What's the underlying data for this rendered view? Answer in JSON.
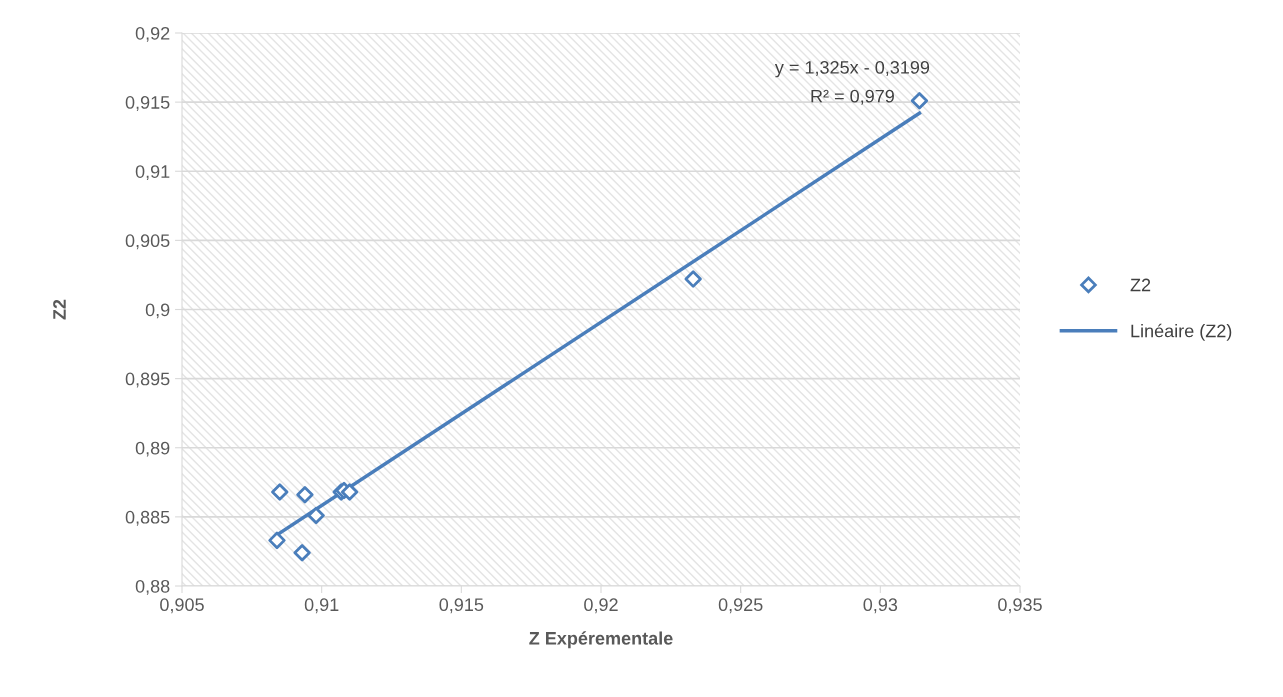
{
  "chart_data": {
    "type": "scatter",
    "xlabel": "Z Expérementale",
    "ylabel": "Z2",
    "series": [
      {
        "name": "Z2",
        "marker": "diamond",
        "color": "#4a7ebb",
        "x": [
          0.9085,
          0.9094,
          0.9098,
          0.9084,
          0.9093,
          0.9107,
          0.9108,
          0.911,
          0.9233,
          0.9314
        ],
        "values": [
          0.8868,
          0.8866,
          0.8851,
          0.8833,
          0.8824,
          0.8868,
          0.8869,
          0.8868,
          0.9022,
          0.9151
        ]
      },
      {
        "name": "Linéaire (Z2)",
        "type": "line",
        "line_style": "solid",
        "color": "#4a7ebb",
        "x": [
          0.9084,
          0.9314
        ],
        "values": [
          0.8837,
          0.9142
        ]
      }
    ],
    "annotations": [
      "y = 1,325x - 0,3199",
      "R² = 0,979"
    ],
    "xlim": [
      0.905,
      0.935
    ],
    "xticks": [
      {
        "value": 0.905,
        "label": "0,905"
      },
      {
        "value": 0.91,
        "label": "0,91"
      },
      {
        "value": 0.915,
        "label": "0,915"
      },
      {
        "value": 0.92,
        "label": "0,92"
      },
      {
        "value": 0.925,
        "label": "0,925"
      },
      {
        "value": 0.93,
        "label": "0,93"
      },
      {
        "value": 0.935,
        "label": "0,935"
      }
    ],
    "ylim": [
      0.88,
      0.92
    ],
    "yticks": [
      {
        "value": 0.88,
        "label": "0,88"
      },
      {
        "value": 0.885,
        "label": "0,885"
      },
      {
        "value": 0.89,
        "label": "0,89"
      },
      {
        "value": 0.895,
        "label": "0,895"
      },
      {
        "value": 0.9,
        "label": "0,9"
      },
      {
        "value": 0.905,
        "label": "0,905"
      },
      {
        "value": 0.91,
        "label": "0,91"
      },
      {
        "value": 0.915,
        "label": "0,915"
      },
      {
        "value": 0.92,
        "label": "0,92"
      }
    ],
    "grid": "y",
    "legend": "right"
  }
}
